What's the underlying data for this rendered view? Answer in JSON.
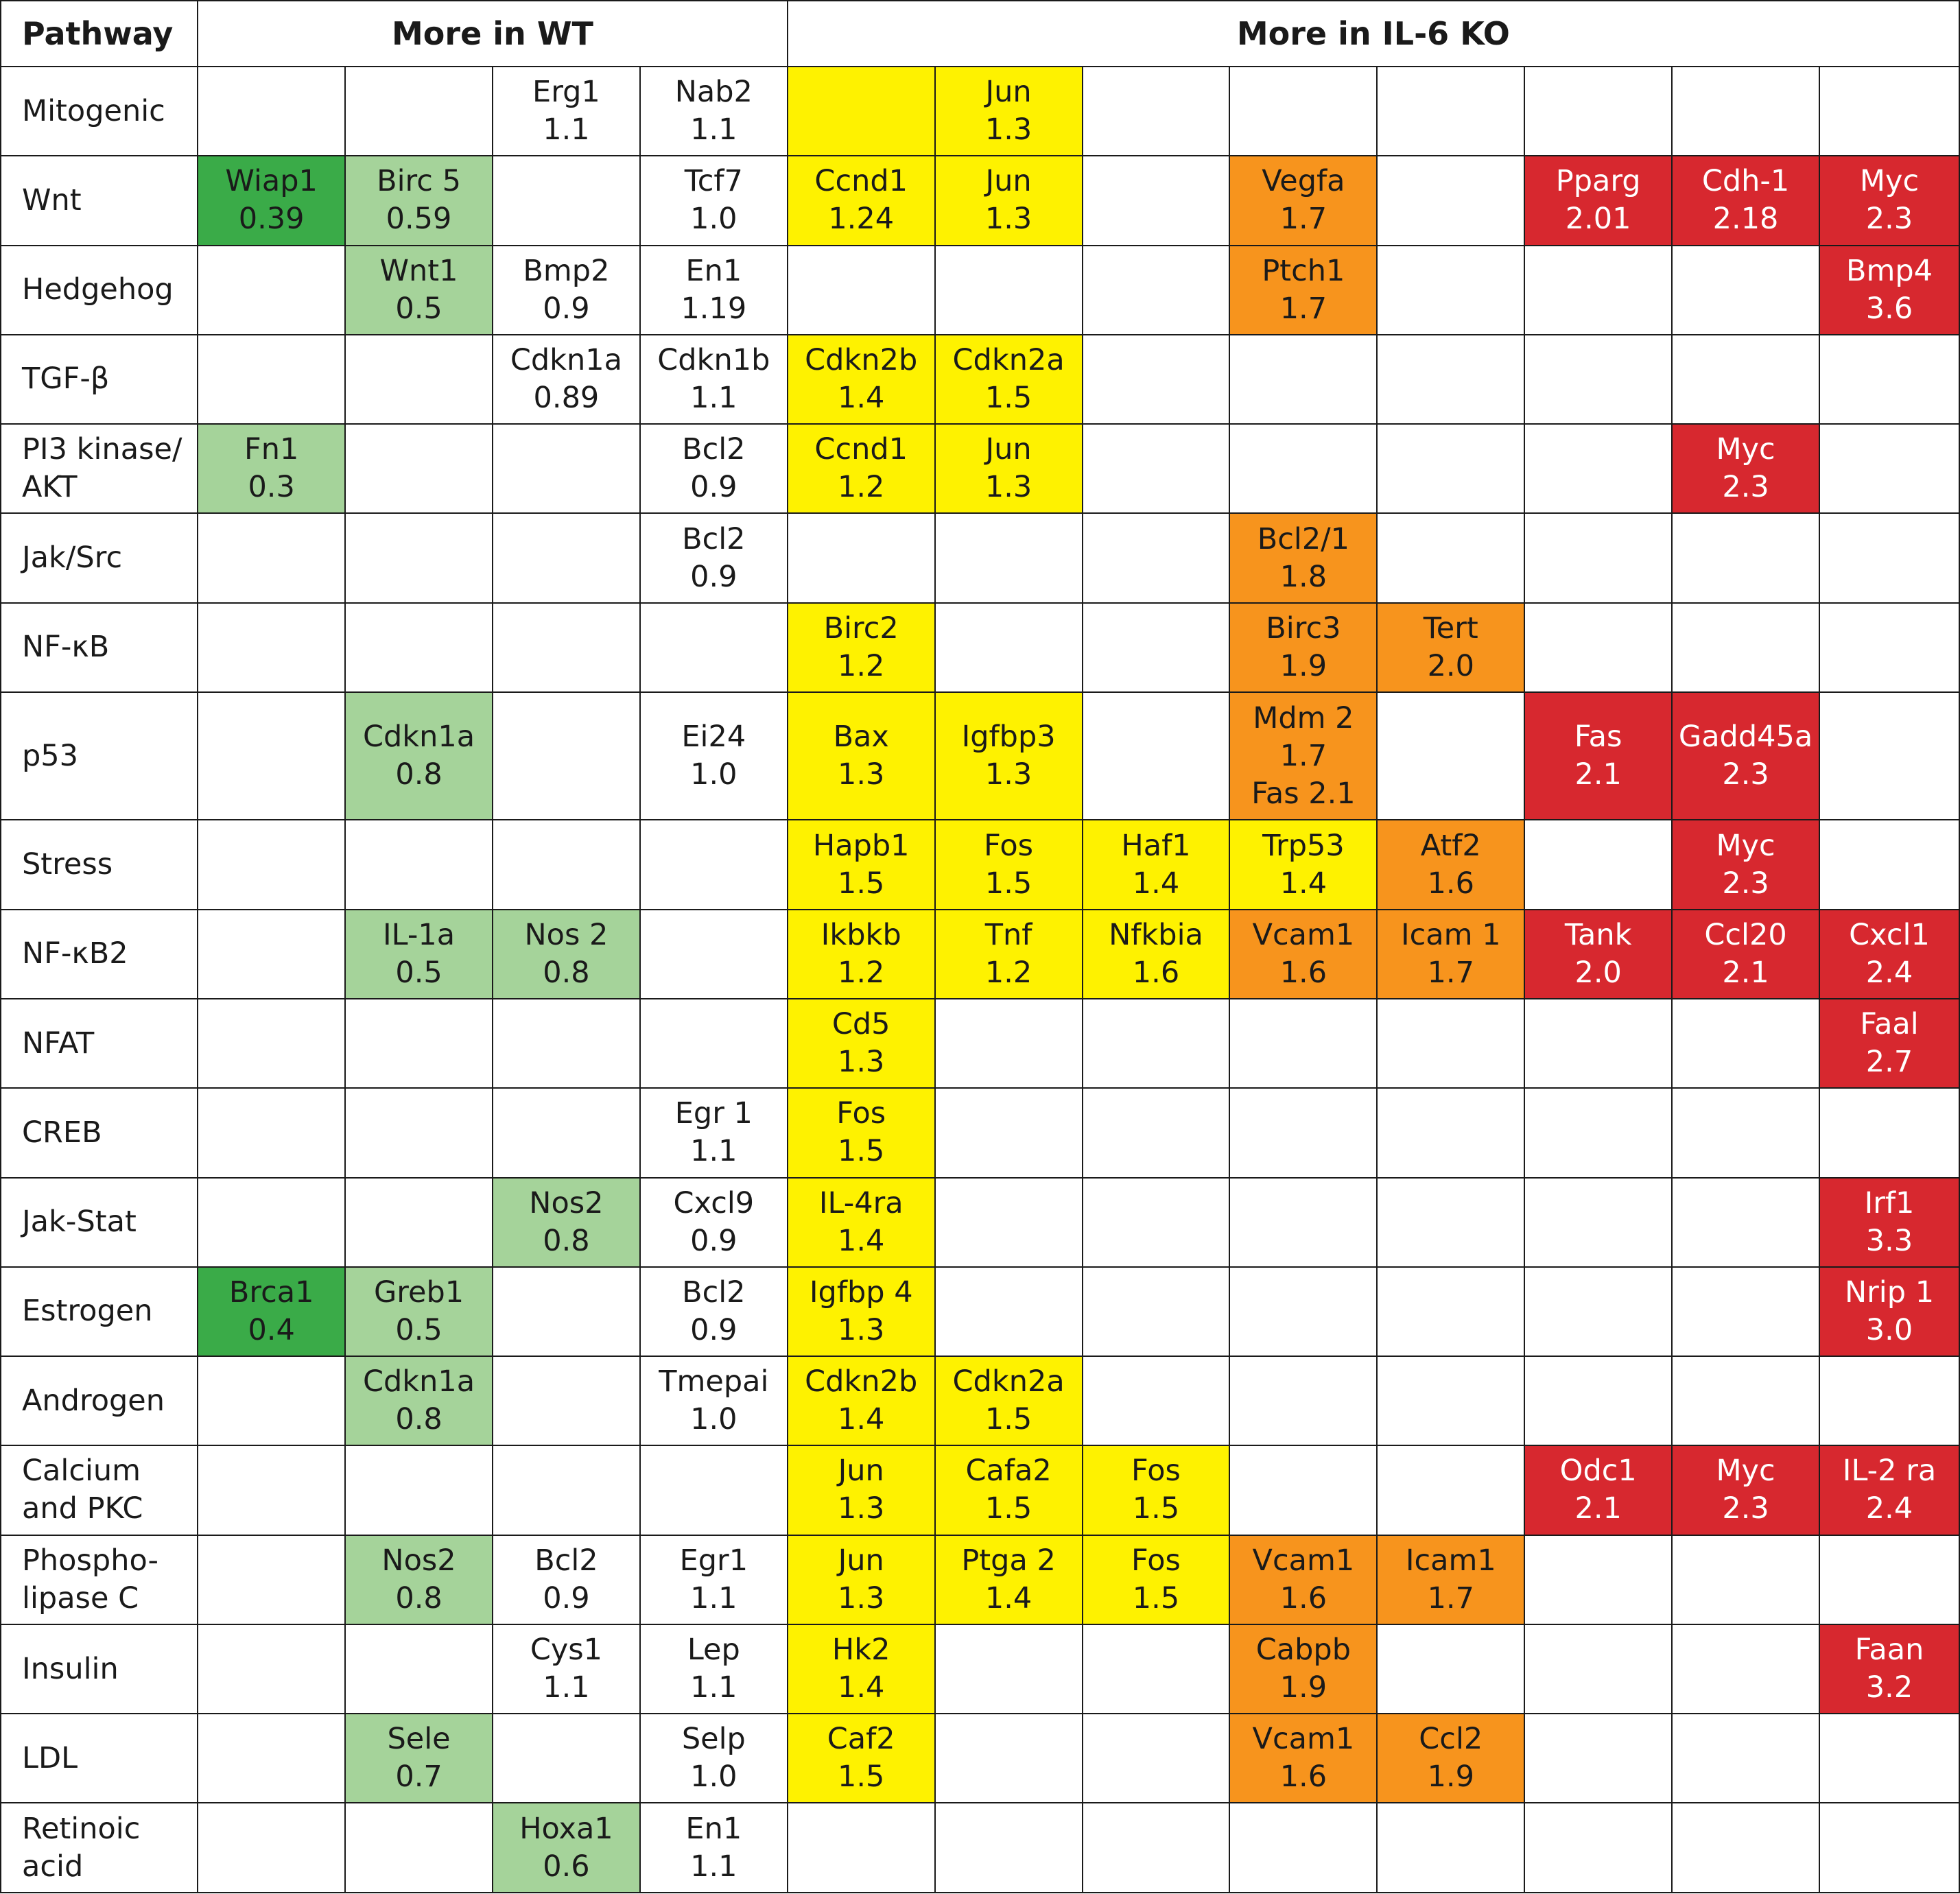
{
  "header": {
    "pathway": "Pathway",
    "more_wt": "More in WT",
    "more_ko": "More in IL-6 KO"
  },
  "colors": {
    "dkgreen": "#3aab48",
    "ltgreen": "#a5d39a",
    "yellow": "#fef200",
    "orange": "#f7941d",
    "red": "#d7282f"
  },
  "rows": [
    {
      "pathway": [
        "Mitogenic"
      ],
      "cells": [
        null,
        null,
        {
          "lines": [
            "Erg1",
            "1.1"
          ],
          "color": "white"
        },
        {
          "lines": [
            "Nab2",
            "1.1"
          ],
          "color": "white"
        },
        {
          "lines": [],
          "color": "yellow"
        },
        {
          "lines": [
            "Jun",
            "1.3"
          ],
          "color": "yellow"
        },
        null,
        null,
        null,
        null,
        null,
        null
      ]
    },
    {
      "pathway": [
        "Wnt"
      ],
      "cells": [
        {
          "lines": [
            "Wiap1",
            "0.39"
          ],
          "color": "dkgreen"
        },
        {
          "lines": [
            "Birc 5",
            "0.59"
          ],
          "color": "ltgreen"
        },
        null,
        {
          "lines": [
            "Tcf7",
            "1.0"
          ],
          "color": "white"
        },
        {
          "lines": [
            "Ccnd1",
            "1.24"
          ],
          "color": "yellow"
        },
        {
          "lines": [
            "Jun",
            "1.3"
          ],
          "color": "yellow"
        },
        null,
        {
          "lines": [
            "Vegfa",
            "1.7"
          ],
          "color": "orange"
        },
        null,
        {
          "lines": [
            "Pparg",
            "2.01"
          ],
          "color": "red"
        },
        {
          "lines": [
            "Cdh-1",
            "2.18"
          ],
          "color": "red"
        },
        {
          "lines": [
            "Myc",
            "2.3"
          ],
          "color": "red"
        }
      ]
    },
    {
      "pathway": [
        "Hedgehog"
      ],
      "cells": [
        null,
        {
          "lines": [
            "Wnt1",
            "0.5"
          ],
          "color": "ltgreen"
        },
        {
          "lines": [
            "Bmp2",
            "0.9"
          ],
          "color": "white"
        },
        {
          "lines": [
            "En1",
            "1.19"
          ],
          "color": "white"
        },
        null,
        null,
        null,
        {
          "lines": [
            "Ptch1",
            "1.7"
          ],
          "color": "orange"
        },
        null,
        null,
        null,
        {
          "lines": [
            "Bmp4",
            "3.6"
          ],
          "color": "red"
        }
      ]
    },
    {
      "pathway": [
        "TGF-β"
      ],
      "cells": [
        null,
        null,
        {
          "lines": [
            "Cdkn1a",
            "0.89"
          ],
          "color": "white"
        },
        {
          "lines": [
            "Cdkn1b",
            "1.1"
          ],
          "color": "white"
        },
        {
          "lines": [
            "Cdkn2b",
            "1.4"
          ],
          "color": "yellow"
        },
        {
          "lines": [
            "Cdkn2a",
            "1.5"
          ],
          "color": "yellow"
        },
        null,
        null,
        null,
        null,
        null,
        null
      ]
    },
    {
      "pathway": [
        "PI3 kinase/",
        "AKT"
      ],
      "cells": [
        {
          "lines": [
            "Fn1",
            "0.3"
          ],
          "color": "ltgreen"
        },
        null,
        null,
        {
          "lines": [
            "Bcl2",
            "0.9"
          ],
          "color": "white"
        },
        {
          "lines": [
            "Ccnd1",
            "1.2"
          ],
          "color": "yellow"
        },
        {
          "lines": [
            "Jun",
            "1.3"
          ],
          "color": "yellow"
        },
        null,
        null,
        null,
        null,
        {
          "lines": [
            "Myc",
            "2.3"
          ],
          "color": "red"
        },
        null
      ]
    },
    {
      "pathway": [
        "Jak/Src"
      ],
      "cells": [
        null,
        null,
        null,
        {
          "lines": [
            "Bcl2",
            "0.9"
          ],
          "color": "white"
        },
        null,
        null,
        null,
        {
          "lines": [
            "Bcl2/1",
            "1.8"
          ],
          "color": "orange"
        },
        null,
        null,
        null,
        null
      ]
    },
    {
      "pathway": [
        "NF-κB"
      ],
      "cells": [
        null,
        null,
        null,
        null,
        {
          "lines": [
            "Birc2",
            "1.2"
          ],
          "color": "yellow"
        },
        null,
        null,
        {
          "lines": [
            "Birc3",
            "1.9"
          ],
          "color": "orange"
        },
        {
          "lines": [
            "Tert",
            "2.0"
          ],
          "color": "orange"
        },
        null,
        null,
        null
      ]
    },
    {
      "pathway": [
        "p53"
      ],
      "cells": [
        null,
        {
          "lines": [
            "Cdkn1a",
            "0.8"
          ],
          "color": "ltgreen"
        },
        null,
        {
          "lines": [
            "Ei24",
            "1.0"
          ],
          "color": "white"
        },
        {
          "lines": [
            "Bax",
            "1.3"
          ],
          "color": "yellow"
        },
        {
          "lines": [
            "Igfbp3",
            "1.3"
          ],
          "color": "yellow"
        },
        null,
        {
          "lines": [
            "Mdm 2",
            "1.7",
            "Fas 2.1"
          ],
          "color": "orange"
        },
        null,
        {
          "lines": [
            "Fas",
            "2.1"
          ],
          "color": "red"
        },
        {
          "lines": [
            "Gadd45a",
            "2.3"
          ],
          "color": "red"
        },
        null
      ]
    },
    {
      "pathway": [
        "Stress"
      ],
      "cells": [
        null,
        null,
        null,
        null,
        {
          "lines": [
            "Hapb1",
            "1.5"
          ],
          "color": "yellow"
        },
        {
          "lines": [
            "Fos",
            "1.5"
          ],
          "color": "yellow"
        },
        {
          "lines": [
            "Haf1",
            "1.4"
          ],
          "color": "yellow"
        },
        {
          "lines": [
            "Trp53",
            "1.4"
          ],
          "color": "yellow"
        },
        {
          "lines": [
            "Atf2",
            "1.6"
          ],
          "color": "orange"
        },
        null,
        {
          "lines": [
            "Myc",
            "2.3"
          ],
          "color": "red"
        },
        null
      ]
    },
    {
      "pathway": [
        "NF-κB2"
      ],
      "cells": [
        null,
        {
          "lines": [
            "IL-1a",
            "0.5"
          ],
          "color": "ltgreen"
        },
        {
          "lines": [
            "Nos 2",
            "0.8"
          ],
          "color": "ltgreen"
        },
        null,
        {
          "lines": [
            "Ikbkb",
            "1.2"
          ],
          "color": "yellow"
        },
        {
          "lines": [
            "Tnf",
            "1.2"
          ],
          "color": "yellow"
        },
        {
          "lines": [
            "Nfkbia",
            "1.6"
          ],
          "color": "yellow"
        },
        {
          "lines": [
            "Vcam1",
            "1.6"
          ],
          "color": "orange"
        },
        {
          "lines": [
            "Icam 1",
            "1.7"
          ],
          "color": "orange"
        },
        {
          "lines": [
            "Tank",
            "2.0"
          ],
          "color": "red"
        },
        {
          "lines": [
            "Ccl20",
            "2.1"
          ],
          "color": "red"
        },
        {
          "lines": [
            "Cxcl1",
            "2.4"
          ],
          "color": "red"
        }
      ]
    },
    {
      "pathway": [
        "NFAT"
      ],
      "cells": [
        null,
        null,
        null,
        null,
        {
          "lines": [
            "Cd5",
            "1.3"
          ],
          "color": "yellow"
        },
        null,
        null,
        null,
        null,
        null,
        null,
        {
          "lines": [
            "Faal",
            "2.7"
          ],
          "color": "red"
        }
      ]
    },
    {
      "pathway": [
        "CREB"
      ],
      "cells": [
        null,
        null,
        null,
        {
          "lines": [
            "Egr 1",
            "1.1"
          ],
          "color": "white"
        },
        {
          "lines": [
            "Fos",
            "1.5"
          ],
          "color": "yellow"
        },
        null,
        null,
        null,
        null,
        null,
        null,
        null
      ]
    },
    {
      "pathway": [
        "Jak-Stat"
      ],
      "cells": [
        null,
        null,
        {
          "lines": [
            "Nos2",
            "0.8"
          ],
          "color": "ltgreen"
        },
        {
          "lines": [
            "Cxcl9",
            "0.9"
          ],
          "color": "white"
        },
        {
          "lines": [
            "IL-4ra",
            "1.4"
          ],
          "color": "yellow"
        },
        null,
        null,
        null,
        null,
        null,
        null,
        {
          "lines": [
            "Irf1",
            "3.3"
          ],
          "color": "red"
        }
      ]
    },
    {
      "pathway": [
        "Estrogen"
      ],
      "cells": [
        {
          "lines": [
            "Brca1",
            "0.4"
          ],
          "color": "dkgreen"
        },
        {
          "lines": [
            "Greb1",
            "0.5"
          ],
          "color": "ltgreen"
        },
        null,
        {
          "lines": [
            "Bcl2",
            "0.9"
          ],
          "color": "white"
        },
        {
          "lines": [
            "Igfbp 4",
            "1.3"
          ],
          "color": "yellow"
        },
        null,
        null,
        null,
        null,
        null,
        null,
        {
          "lines": [
            "Nrip 1",
            "3.0"
          ],
          "color": "red"
        }
      ]
    },
    {
      "pathway": [
        "Androgen"
      ],
      "cells": [
        null,
        {
          "lines": [
            "Cdkn1a",
            "0.8"
          ],
          "color": "ltgreen"
        },
        null,
        {
          "lines": [
            "Tmepai",
            "1.0"
          ],
          "color": "white"
        },
        {
          "lines": [
            "Cdkn2b",
            "1.4"
          ],
          "color": "yellow"
        },
        {
          "lines": [
            "Cdkn2a",
            "1.5"
          ],
          "color": "yellow"
        },
        null,
        null,
        null,
        null,
        null,
        null
      ]
    },
    {
      "pathway": [
        "Calcium",
        "and PKC"
      ],
      "cells": [
        null,
        null,
        null,
        null,
        {
          "lines": [
            "Jun",
            "1.3"
          ],
          "color": "yellow"
        },
        {
          "lines": [
            "Cafa2",
            "1.5"
          ],
          "color": "yellow"
        },
        {
          "lines": [
            "Fos",
            "1.5"
          ],
          "color": "yellow"
        },
        null,
        null,
        {
          "lines": [
            "Odc1",
            "2.1"
          ],
          "color": "red"
        },
        {
          "lines": [
            "Myc",
            "2.3"
          ],
          "color": "red"
        },
        {
          "lines": [
            "IL-2 ra",
            "2.4"
          ],
          "color": "red"
        }
      ]
    },
    {
      "pathway": [
        "Phospho-",
        "lipase C"
      ],
      "cells": [
        null,
        {
          "lines": [
            "Nos2",
            "0.8"
          ],
          "color": "ltgreen"
        },
        {
          "lines": [
            "Bcl2",
            "0.9"
          ],
          "color": "white"
        },
        {
          "lines": [
            "Egr1",
            "1.1"
          ],
          "color": "white"
        },
        {
          "lines": [
            "Jun",
            "1.3"
          ],
          "color": "yellow"
        },
        {
          "lines": [
            "Ptga 2",
            "1.4"
          ],
          "color": "yellow"
        },
        {
          "lines": [
            "Fos",
            "1.5"
          ],
          "color": "yellow"
        },
        {
          "lines": [
            "Vcam1",
            "1.6"
          ],
          "color": "orange"
        },
        {
          "lines": [
            "Icam1",
            "1.7"
          ],
          "color": "orange"
        },
        null,
        null,
        null
      ]
    },
    {
      "pathway": [
        "Insulin"
      ],
      "cells": [
        null,
        null,
        {
          "lines": [
            "Cys1",
            "1.1"
          ],
          "color": "white"
        },
        {
          "lines": [
            "Lep",
            "1.1"
          ],
          "color": "white"
        },
        {
          "lines": [
            "Hk2",
            "1.4"
          ],
          "color": "yellow"
        },
        null,
        null,
        {
          "lines": [
            "Cabpb",
            "1.9"
          ],
          "color": "orange"
        },
        null,
        null,
        null,
        {
          "lines": [
            "Faan",
            "3.2"
          ],
          "color": "red"
        }
      ]
    },
    {
      "pathway": [
        "LDL"
      ],
      "cells": [
        null,
        {
          "lines": [
            "Sele",
            "0.7"
          ],
          "color": "ltgreen"
        },
        null,
        {
          "lines": [
            "Selp",
            "1.0"
          ],
          "color": "white"
        },
        {
          "lines": [
            "Caf2",
            "1.5"
          ],
          "color": "yellow"
        },
        null,
        null,
        {
          "lines": [
            "Vcam1",
            "1.6"
          ],
          "color": "orange"
        },
        {
          "lines": [
            "Ccl2",
            "1.9"
          ],
          "color": "orange"
        },
        null,
        null,
        null
      ]
    },
    {
      "pathway": [
        "Retinoic",
        "acid"
      ],
      "cells": [
        null,
        null,
        {
          "lines": [
            "Hoxa1",
            "0.6"
          ],
          "color": "ltgreen"
        },
        {
          "lines": [
            "En1",
            "1.1"
          ],
          "color": "white"
        },
        null,
        null,
        null,
        null,
        null,
        null,
        null,
        null
      ]
    }
  ]
}
